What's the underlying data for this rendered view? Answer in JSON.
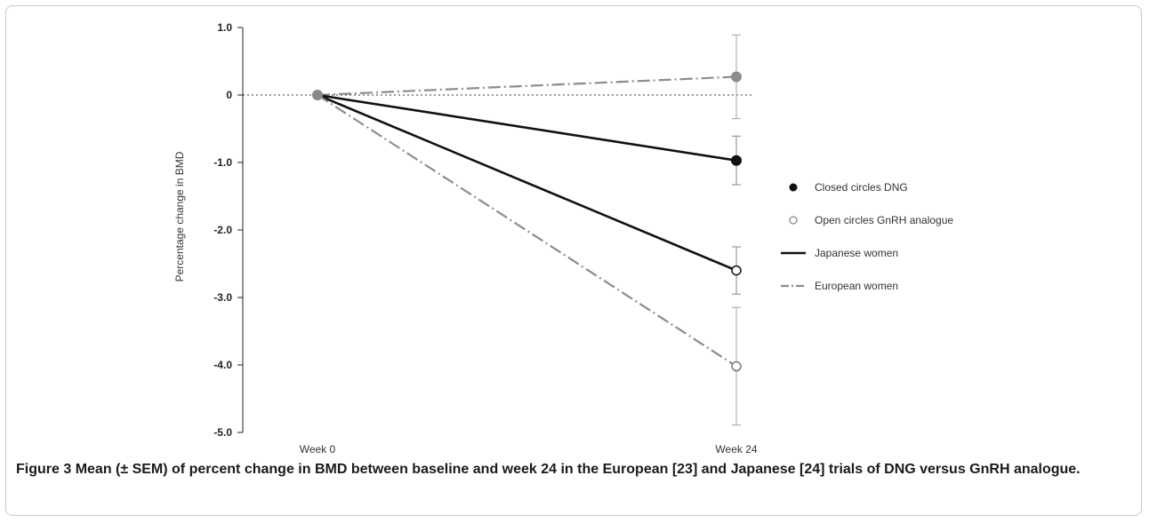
{
  "caption": {
    "label": "Figure 3",
    "text": "Mean (± SEM) of percent change in BMD between baseline and week 24 in the European [23] and Japanese [24] trials of DNG versus GnRH analogue."
  },
  "chart_data": {
    "type": "line",
    "title": "",
    "xlabel": "",
    "ylabel": "Percentage change in BMD",
    "categories": [
      "Week 0",
      "Week 24"
    ],
    "y_ticks": [
      "1.0",
      "0",
      "-1.0",
      "-2.0",
      "-3.0",
      "-4.0",
      "-5.0"
    ],
    "y_tick_values": [
      1.0,
      0,
      -1.0,
      -2.0,
      -3.0,
      -4.0,
      -5.0
    ],
    "ylim": [
      -5.0,
      1.0
    ],
    "reference_line": 0,
    "grid": false,
    "legend_position": "right",
    "legend": [
      {
        "label": "Closed circles DNG",
        "kind": "marker-filled",
        "color": "#111111"
      },
      {
        "label": "Open circles GnRH analogue",
        "kind": "marker-open",
        "color": "#888888"
      },
      {
        "label": "Japanese women",
        "kind": "line-solid",
        "color": "#111111"
      },
      {
        "label": "European women",
        "kind": "line-dashdot",
        "color": "#8c8c8c"
      }
    ],
    "series": [
      {
        "name": "European women DNG",
        "line": "dashdot",
        "marker": "filled",
        "color": "#8c8c8c",
        "values": [
          0,
          0.27
        ],
        "sem": [
          0,
          0.62
        ]
      },
      {
        "name": "Japanese women DNG",
        "line": "solid",
        "marker": "filled",
        "color": "#111111",
        "values": [
          0,
          -0.97
        ],
        "sem": [
          0,
          0.36
        ]
      },
      {
        "name": "Japanese women GnRH analogue",
        "line": "solid",
        "marker": "open",
        "color": "#111111",
        "values": [
          0,
          -2.6
        ],
        "sem": [
          0,
          0.35
        ]
      },
      {
        "name": "European women GnRH analogue",
        "line": "dashdot",
        "marker": "open",
        "color": "#8c8c8c",
        "values": [
          0,
          -4.02
        ],
        "sem": [
          0,
          0.87
        ]
      }
    ]
  }
}
